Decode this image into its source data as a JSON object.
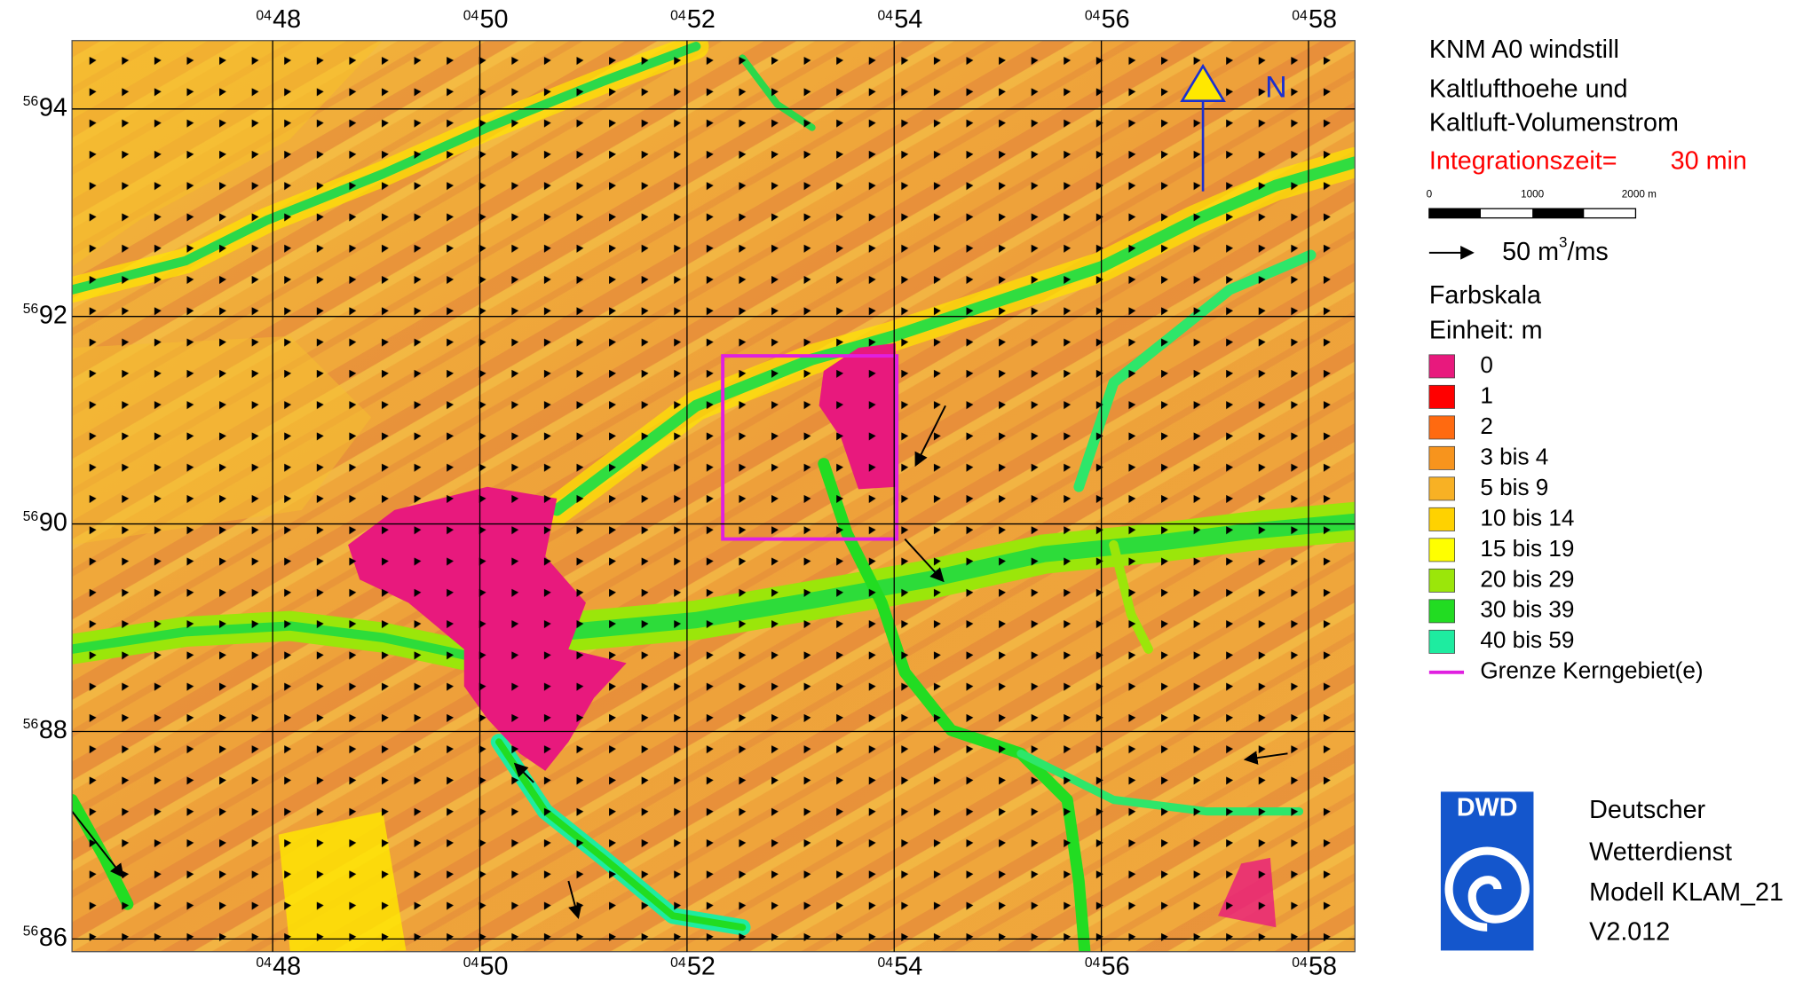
{
  "header": {
    "lines": [
      "KNM A0 windstill",
      "Kaltlufthoehe und",
      "Kaltluft-Volumenstrom"
    ],
    "integration_label": "Integrationszeit=",
    "integration_value": "30 min"
  },
  "north": "N",
  "scale_bar": {
    "labels": [
      "0",
      "1000",
      "2000 m"
    ]
  },
  "vector_legend": {
    "value": "50",
    "unit": "m",
    "superscript": "3",
    "suffix": "/ms"
  },
  "color_scale": {
    "title": "Farbskala",
    "unit": "Einheit: m",
    "items": [
      {
        "label": "0",
        "color": "#e8197d"
      },
      {
        "label": "1",
        "color": "#ff0000"
      },
      {
        "label": "2",
        "color": "#ff6a10"
      },
      {
        "label": "3 bis 4",
        "color": "#f7941d"
      },
      {
        "label": "5 bis 9",
        "color": "#f8b124"
      },
      {
        "label": "10 bis 14",
        "color": "#ffd200"
      },
      {
        "label": "15 bis 19",
        "color": "#ffff00"
      },
      {
        "label": "20 bis 29",
        "color": "#9be60a"
      },
      {
        "label": "30 bis 39",
        "color": "#22dc22"
      },
      {
        "label": "40 bis 59",
        "color": "#1eeca0"
      }
    ],
    "boundary": {
      "label": "Grenze Kerngebiet(e)",
      "color": "#e020e0"
    }
  },
  "grid": {
    "x": [
      {
        "prefix": "04",
        "label": "48"
      },
      {
        "prefix": "04",
        "label": "50"
      },
      {
        "prefix": "04",
        "label": "52"
      },
      {
        "prefix": "04",
        "label": "54"
      },
      {
        "prefix": "04",
        "label": "56"
      },
      {
        "prefix": "04",
        "label": "58"
      }
    ],
    "y": [
      {
        "prefix": "56",
        "label": "94"
      },
      {
        "prefix": "56",
        "label": "92"
      },
      {
        "prefix": "56",
        "label": "90"
      },
      {
        "prefix": "56",
        "label": "88"
      },
      {
        "prefix": "56",
        "label": "86"
      }
    ]
  },
  "logo": {
    "abbr": "DWD",
    "lines": [
      "Deutscher",
      "Wetterdienst",
      "Modell KLAM_21",
      "V2.012"
    ]
  }
}
